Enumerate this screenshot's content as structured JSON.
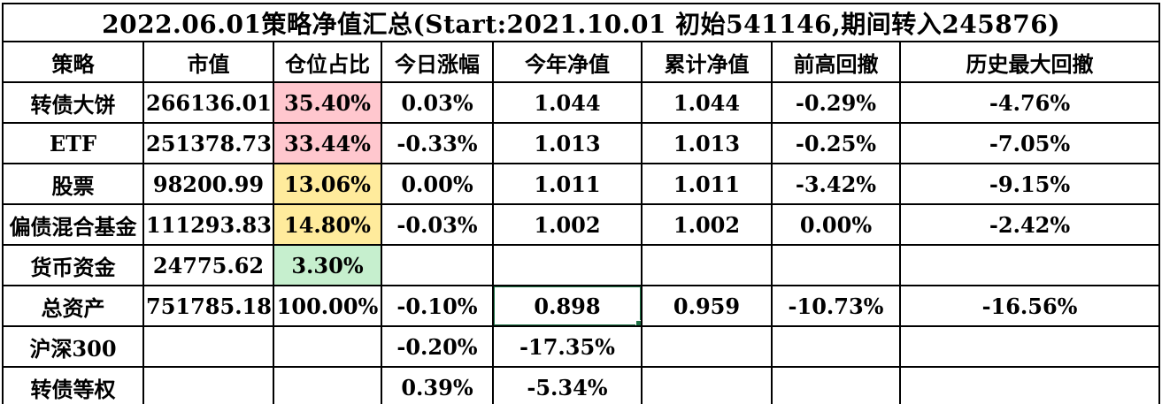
{
  "title": "2022.06.01策略净值汇总(Start:2021.10.01 初始541146,期间转入245876)",
  "columns": [
    {
      "key": "strategy",
      "label": "策略"
    },
    {
      "key": "market_value",
      "label": "市值"
    },
    {
      "key": "position_pct",
      "label": "仓位占比"
    },
    {
      "key": "today_change",
      "label": "今日涨幅"
    },
    {
      "key": "ytd_nav",
      "label": "今年净值"
    },
    {
      "key": "cum_nav",
      "label": "累计净值"
    },
    {
      "key": "prev_high_drawdown",
      "label": "前高回撤"
    },
    {
      "key": "max_drawdown",
      "label": "历史最大回撤"
    }
  ],
  "rows": [
    {
      "strategy": "转债大饼",
      "market_value": "266136.01",
      "position_pct": "35.40%",
      "position_style": "bad",
      "today_change": "0.03%",
      "ytd_nav": "1.044",
      "cum_nav": "1.044",
      "prev_high_drawdown": "-0.29%",
      "max_drawdown": "-4.76%"
    },
    {
      "strategy": "ETF",
      "market_value": "251378.73",
      "position_pct": "33.44%",
      "position_style": "bad",
      "today_change": "-0.33%",
      "ytd_nav": "1.013",
      "cum_nav": "1.013",
      "prev_high_drawdown": "-0.25%",
      "max_drawdown": "-7.05%"
    },
    {
      "strategy": "股票",
      "market_value": "98200.99",
      "position_pct": "13.06%",
      "position_style": "neutral",
      "today_change": "0.00%",
      "ytd_nav": "1.011",
      "cum_nav": "1.011",
      "prev_high_drawdown": "-3.42%",
      "max_drawdown": "-9.15%"
    },
    {
      "strategy": "偏债混合基金",
      "market_value": "111293.83",
      "position_pct": "14.80%",
      "position_style": "neutral",
      "today_change": "-0.03%",
      "ytd_nav": "1.002",
      "cum_nav": "1.002",
      "prev_high_drawdown": "0.00%",
      "max_drawdown": "-2.42%"
    },
    {
      "strategy": "货币资金",
      "market_value": "24775.62",
      "position_pct": "3.30%",
      "position_style": "good",
      "today_change": "",
      "ytd_nav": "",
      "cum_nav": "",
      "prev_high_drawdown": "",
      "max_drawdown": ""
    },
    {
      "strategy": "总资产",
      "market_value": "751785.182",
      "position_pct": "100.00%",
      "position_style": "none",
      "today_change": "-0.10%",
      "ytd_nav": "0.898",
      "cum_nav": "0.959",
      "prev_high_drawdown": "-10.73%",
      "max_drawdown": "-16.56%"
    },
    {
      "strategy": "沪深300",
      "market_value": "",
      "position_pct": "",
      "position_style": "none",
      "today_change": "-0.20%",
      "ytd_nav": "-17.35%",
      "cum_nav": "",
      "prev_high_drawdown": "",
      "max_drawdown": ""
    },
    {
      "strategy": "转债等权",
      "market_value": "",
      "position_pct": "",
      "position_style": "none",
      "today_change": "0.39%",
      "ytd_nav": "-5.34%",
      "cum_nav": "",
      "prev_high_drawdown": "",
      "max_drawdown": ""
    }
  ],
  "selection": {
    "row_index": 5,
    "column_key": "ytd_nav",
    "value": "0.898"
  },
  "colors": {
    "bad_bg": "#FFC7CE",
    "bad_fg": "#9C0006",
    "neutral_bg": "#FFEB9C",
    "neutral_fg": "#9C6500",
    "good_bg": "#C6EFCE",
    "good_fg": "#006100",
    "selection_border": "#1E7145",
    "grid_border": "#000000"
  }
}
